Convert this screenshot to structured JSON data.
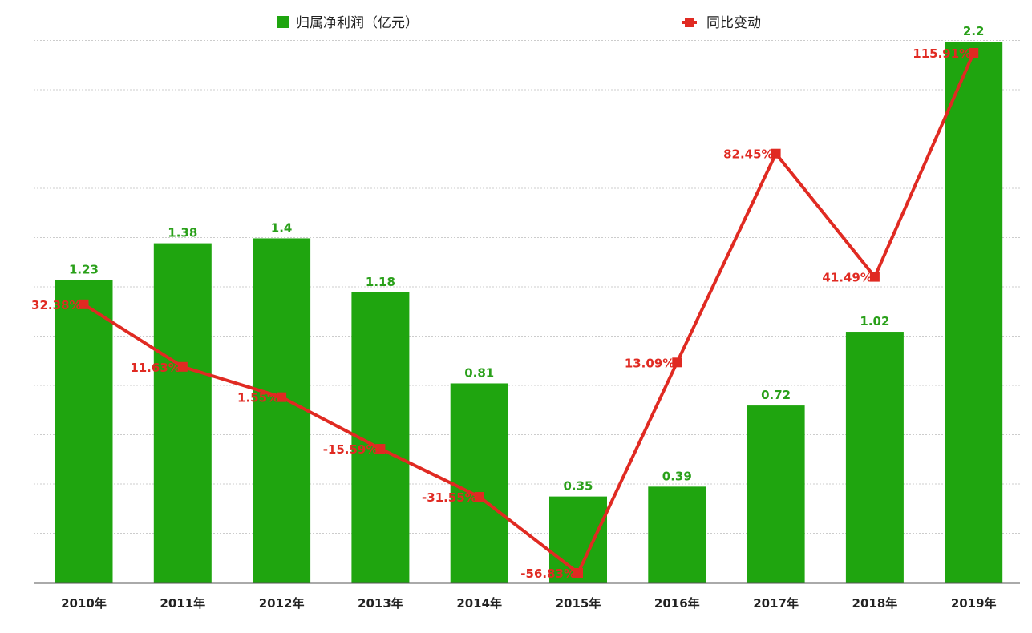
{
  "colors": {
    "bar": "#1fa50f",
    "bar_label": "#2aa01a",
    "line": "#e02a22",
    "line_label": "#e02a22",
    "grid": "#cccccc",
    "axis": "#555555"
  },
  "chart_data": {
    "type": "bar",
    "title": "",
    "xlabel": "",
    "ylabel": "",
    "grid": true,
    "legend_position": "top",
    "categories": [
      "2010年",
      "2011年",
      "2012年",
      "2013年",
      "2014年",
      "2015年",
      "2016年",
      "2017年",
      "2018年",
      "2019年"
    ],
    "series": [
      {
        "name": "归属净利润（亿元）",
        "type": "bar",
        "values": [
          1.23,
          1.38,
          1.4,
          1.18,
          0.81,
          0.35,
          0.39,
          0.72,
          1.02,
          2.2
        ],
        "labels": [
          "1.23",
          "1.38",
          "1.4",
          "1.18",
          "0.81",
          "0.35",
          "0.39",
          "0.72",
          "1.02",
          "2.2"
        ],
        "ylim": [
          0,
          2.2
        ]
      },
      {
        "name": "同比变动",
        "type": "line",
        "values": [
          32.38,
          11.63,
          1.55,
          -15.59,
          -31.55,
          -56.83,
          13.09,
          82.45,
          41.49,
          115.91
        ],
        "labels": [
          "32.38%",
          "11.63%",
          "1.55%",
          "-15.59%",
          "-31.55%",
          "-56.83%",
          "13.09%",
          "82.45%",
          "41.49%",
          "115.91%"
        ],
        "ylim": [
          -56.83,
          115.91
        ]
      }
    ]
  }
}
